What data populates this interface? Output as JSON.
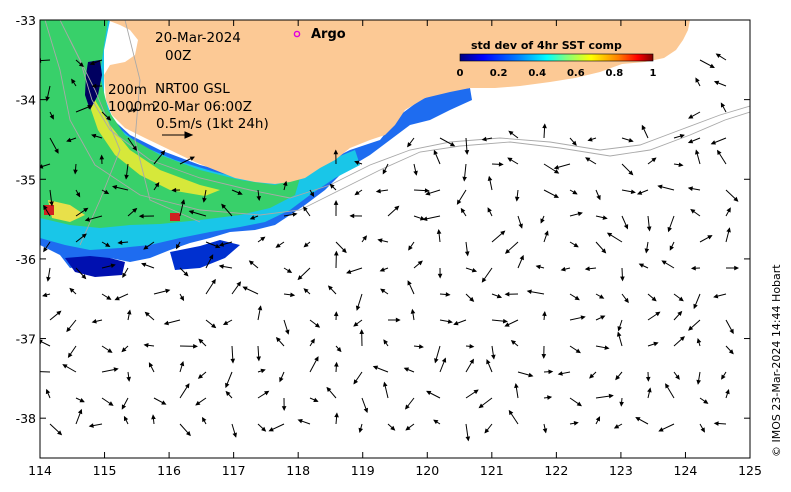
{
  "map": {
    "lon_range": [
      114,
      125
    ],
    "lat_range": [
      -38.5,
      -33
    ],
    "lon_ticks": [
      114,
      115,
      116,
      117,
      118,
      119,
      120,
      121,
      122,
      123,
      124,
      125
    ],
    "lat_ticks": [
      -33,
      -34,
      -35,
      -36,
      -37,
      -38
    ],
    "land_color": "#fcc995",
    "bathymetry_color": "#a9a9a9",
    "arrow_color": "#000000"
  },
  "annotations": {
    "date_line1": "20-Mar-2024",
    "date_line2": "00Z",
    "iso_200": "200m",
    "iso_1000": "1000m",
    "nrt_label": "NRT00 GSL",
    "nrt_time": "20-Mar 06:00Z",
    "scale_label": "0.5m/s (1kt 24h)",
    "argo_label": "Argo"
  },
  "colorbar": {
    "title": "std dev of 4hr SST comp",
    "ticks": [
      "0",
      "0.2",
      "0.4",
      "0.6",
      "0.8",
      "1"
    ],
    "range": [
      0,
      1
    ],
    "colors": [
      "#00007f",
      "#0000ff",
      "#007fff",
      "#00ffff",
      "#7fff7f",
      "#ffff00",
      "#ff7f00",
      "#ff0000",
      "#7f0000"
    ]
  },
  "credit": "© IMOS 23-Mar-2024 14:44 Hobart"
}
